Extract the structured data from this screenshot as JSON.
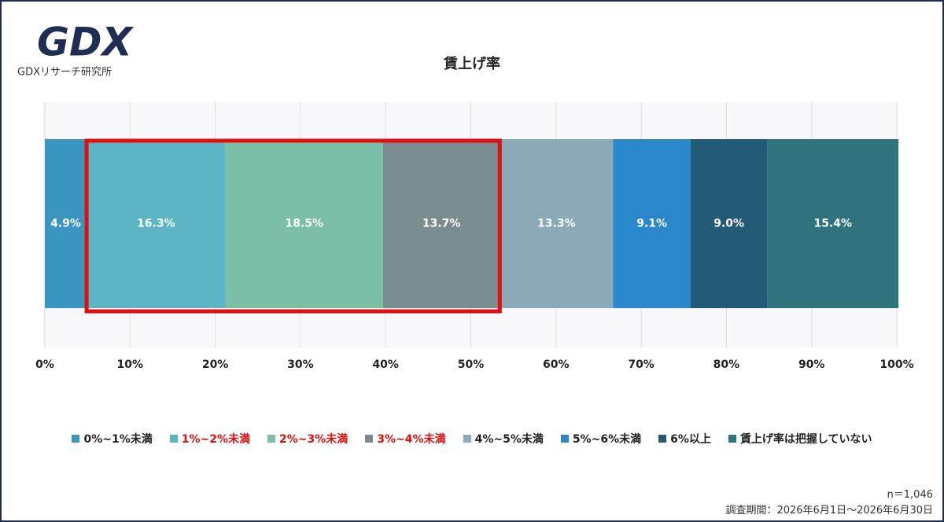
{
  "logo": "GDX",
  "logo_caption": "GDXリサーチ研究所",
  "chart_data": {
    "type": "stacked-bar-horizontal",
    "title": "賃上げ率",
    "series": [
      {
        "name": "0%~1%未満",
        "color": "#3a95c0",
        "values": [
          4.9
        ],
        "value_labels": [
          "4.9%"
        ]
      },
      {
        "name": "1%~2%未満",
        "color": "#5bb5c4",
        "values": [
          16.3
        ],
        "value_labels": [
          "16.3%"
        ],
        "legend_color": "#e01010",
        "highlight": true
      },
      {
        "name": "2%~3%未満",
        "color": "#7bbfa8",
        "values": [
          18.5
        ],
        "value_labels": [
          "18.5%"
        ],
        "legend_color": "#e01010",
        "highlight": true
      },
      {
        "name": "3%~4%未満",
        "color": "#7b8c8f",
        "values": [
          13.7
        ],
        "value_labels": [
          "13.7%"
        ],
        "legend_color": "#e01010",
        "highlight": true
      },
      {
        "name": "4%~5%未満",
        "color": "#8aaab8",
        "values": [
          13.3
        ],
        "value_labels": [
          "13.3%"
        ]
      },
      {
        "name": "5%~6%未満",
        "color": "#2a87cc",
        "values": [
          9.1
        ],
        "value_labels": [
          "9.1%"
        ]
      },
      {
        "name": "6%以上",
        "color": "#225a78",
        "values": [
          9.0
        ],
        "value_labels": [
          "9.0%"
        ]
      },
      {
        "name": "賃上げ率は把握していない",
        "color": "#2f737c",
        "values": [
          15.4
        ],
        "value_labels": [
          "15.4%"
        ]
      }
    ],
    "xlim": [
      0,
      100
    ],
    "xticks": [
      {
        "value": 0,
        "label": "0%"
      },
      {
        "value": 10,
        "label": "10%"
      },
      {
        "value": 20,
        "label": "20%"
      },
      {
        "value": 30,
        "label": "30%"
      },
      {
        "value": 40,
        "label": "40%"
      },
      {
        "value": 50,
        "label": "50%"
      },
      {
        "value": 60,
        "label": "60%"
      },
      {
        "value": 70,
        "label": "70%"
      },
      {
        "value": 80,
        "label": "80%"
      },
      {
        "value": 90,
        "label": "90%"
      },
      {
        "value": 100,
        "label": "100%"
      }
    ],
    "grid": true,
    "highlight_color": "#e01010",
    "sample_size": "n＝1,046",
    "period": "調査期間：2026年6月1日～2026年6月30日"
  }
}
